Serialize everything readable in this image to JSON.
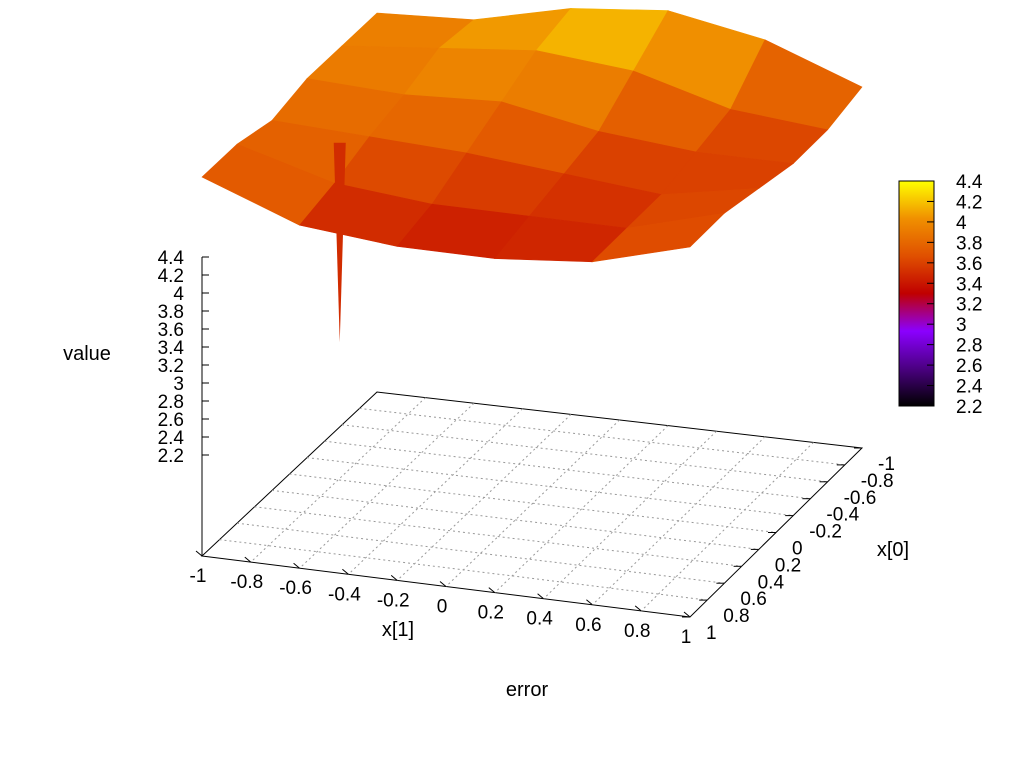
{
  "chart_data": {
    "type": "surface3d",
    "title": "error",
    "xlabel": "x[1]",
    "ylabel": "x[0]",
    "zlabel": "value",
    "x_ticks": [
      "-1",
      "-0.8",
      "-0.6",
      "-0.4",
      "-0.2",
      "0",
      "0.2",
      "0.4",
      "0.6",
      "0.8",
      "1"
    ],
    "y_ticks": [
      "-1",
      "-0.8",
      "-0.6",
      "-0.4",
      "-0.2",
      "0",
      "0.2",
      "0.4",
      "0.6",
      "0.8",
      "1"
    ],
    "z_ticks": [
      "2.2",
      "2.4",
      "2.6",
      "2.8",
      "3",
      "3.2",
      "3.4",
      "3.6",
      "3.8",
      "4",
      "4.2",
      "4.4"
    ],
    "colorbar_ticks": [
      "2.2",
      "2.4",
      "2.6",
      "2.8",
      "3",
      "3.2",
      "3.4",
      "3.6",
      "3.8",
      "4",
      "4.2",
      "4.4"
    ],
    "xlim": [
      -1,
      1
    ],
    "ylim": [
      -1,
      1
    ],
    "zlim": [
      2.2,
      4.4
    ],
    "grid": true,
    "colormap": [
      "#000000",
      "#4b0082",
      "#8b00ff",
      "#c00000",
      "#e05000",
      "#f09000",
      "#ffff00"
    ],
    "x": [
      -1,
      -0.6,
      -0.2,
      0.2,
      0.6,
      1
    ],
    "y": [
      -1,
      -0.6,
      -0.2,
      0.2,
      0.6,
      1
    ],
    "z": [
      [
        3.9,
        3.95,
        4.2,
        4.3,
        4.1,
        3.7
      ],
      [
        3.9,
        4.0,
        4.1,
        4.0,
        3.7,
        3.6
      ],
      [
        3.9,
        3.85,
        3.9,
        3.7,
        3.6,
        3.6
      ],
      [
        3.8,
        3.75,
        3.7,
        3.6,
        3.5,
        3.7
      ],
      [
        3.9,
        3.6,
        3.5,
        3.5,
        3.5,
        3.8
      ],
      [
        3.9,
        3.5,
        3.4,
        3.4,
        3.5,
        3.8
      ]
    ],
    "outlier": {
      "x": -1,
      "y": 0.4,
      "z": 2.3
    }
  }
}
